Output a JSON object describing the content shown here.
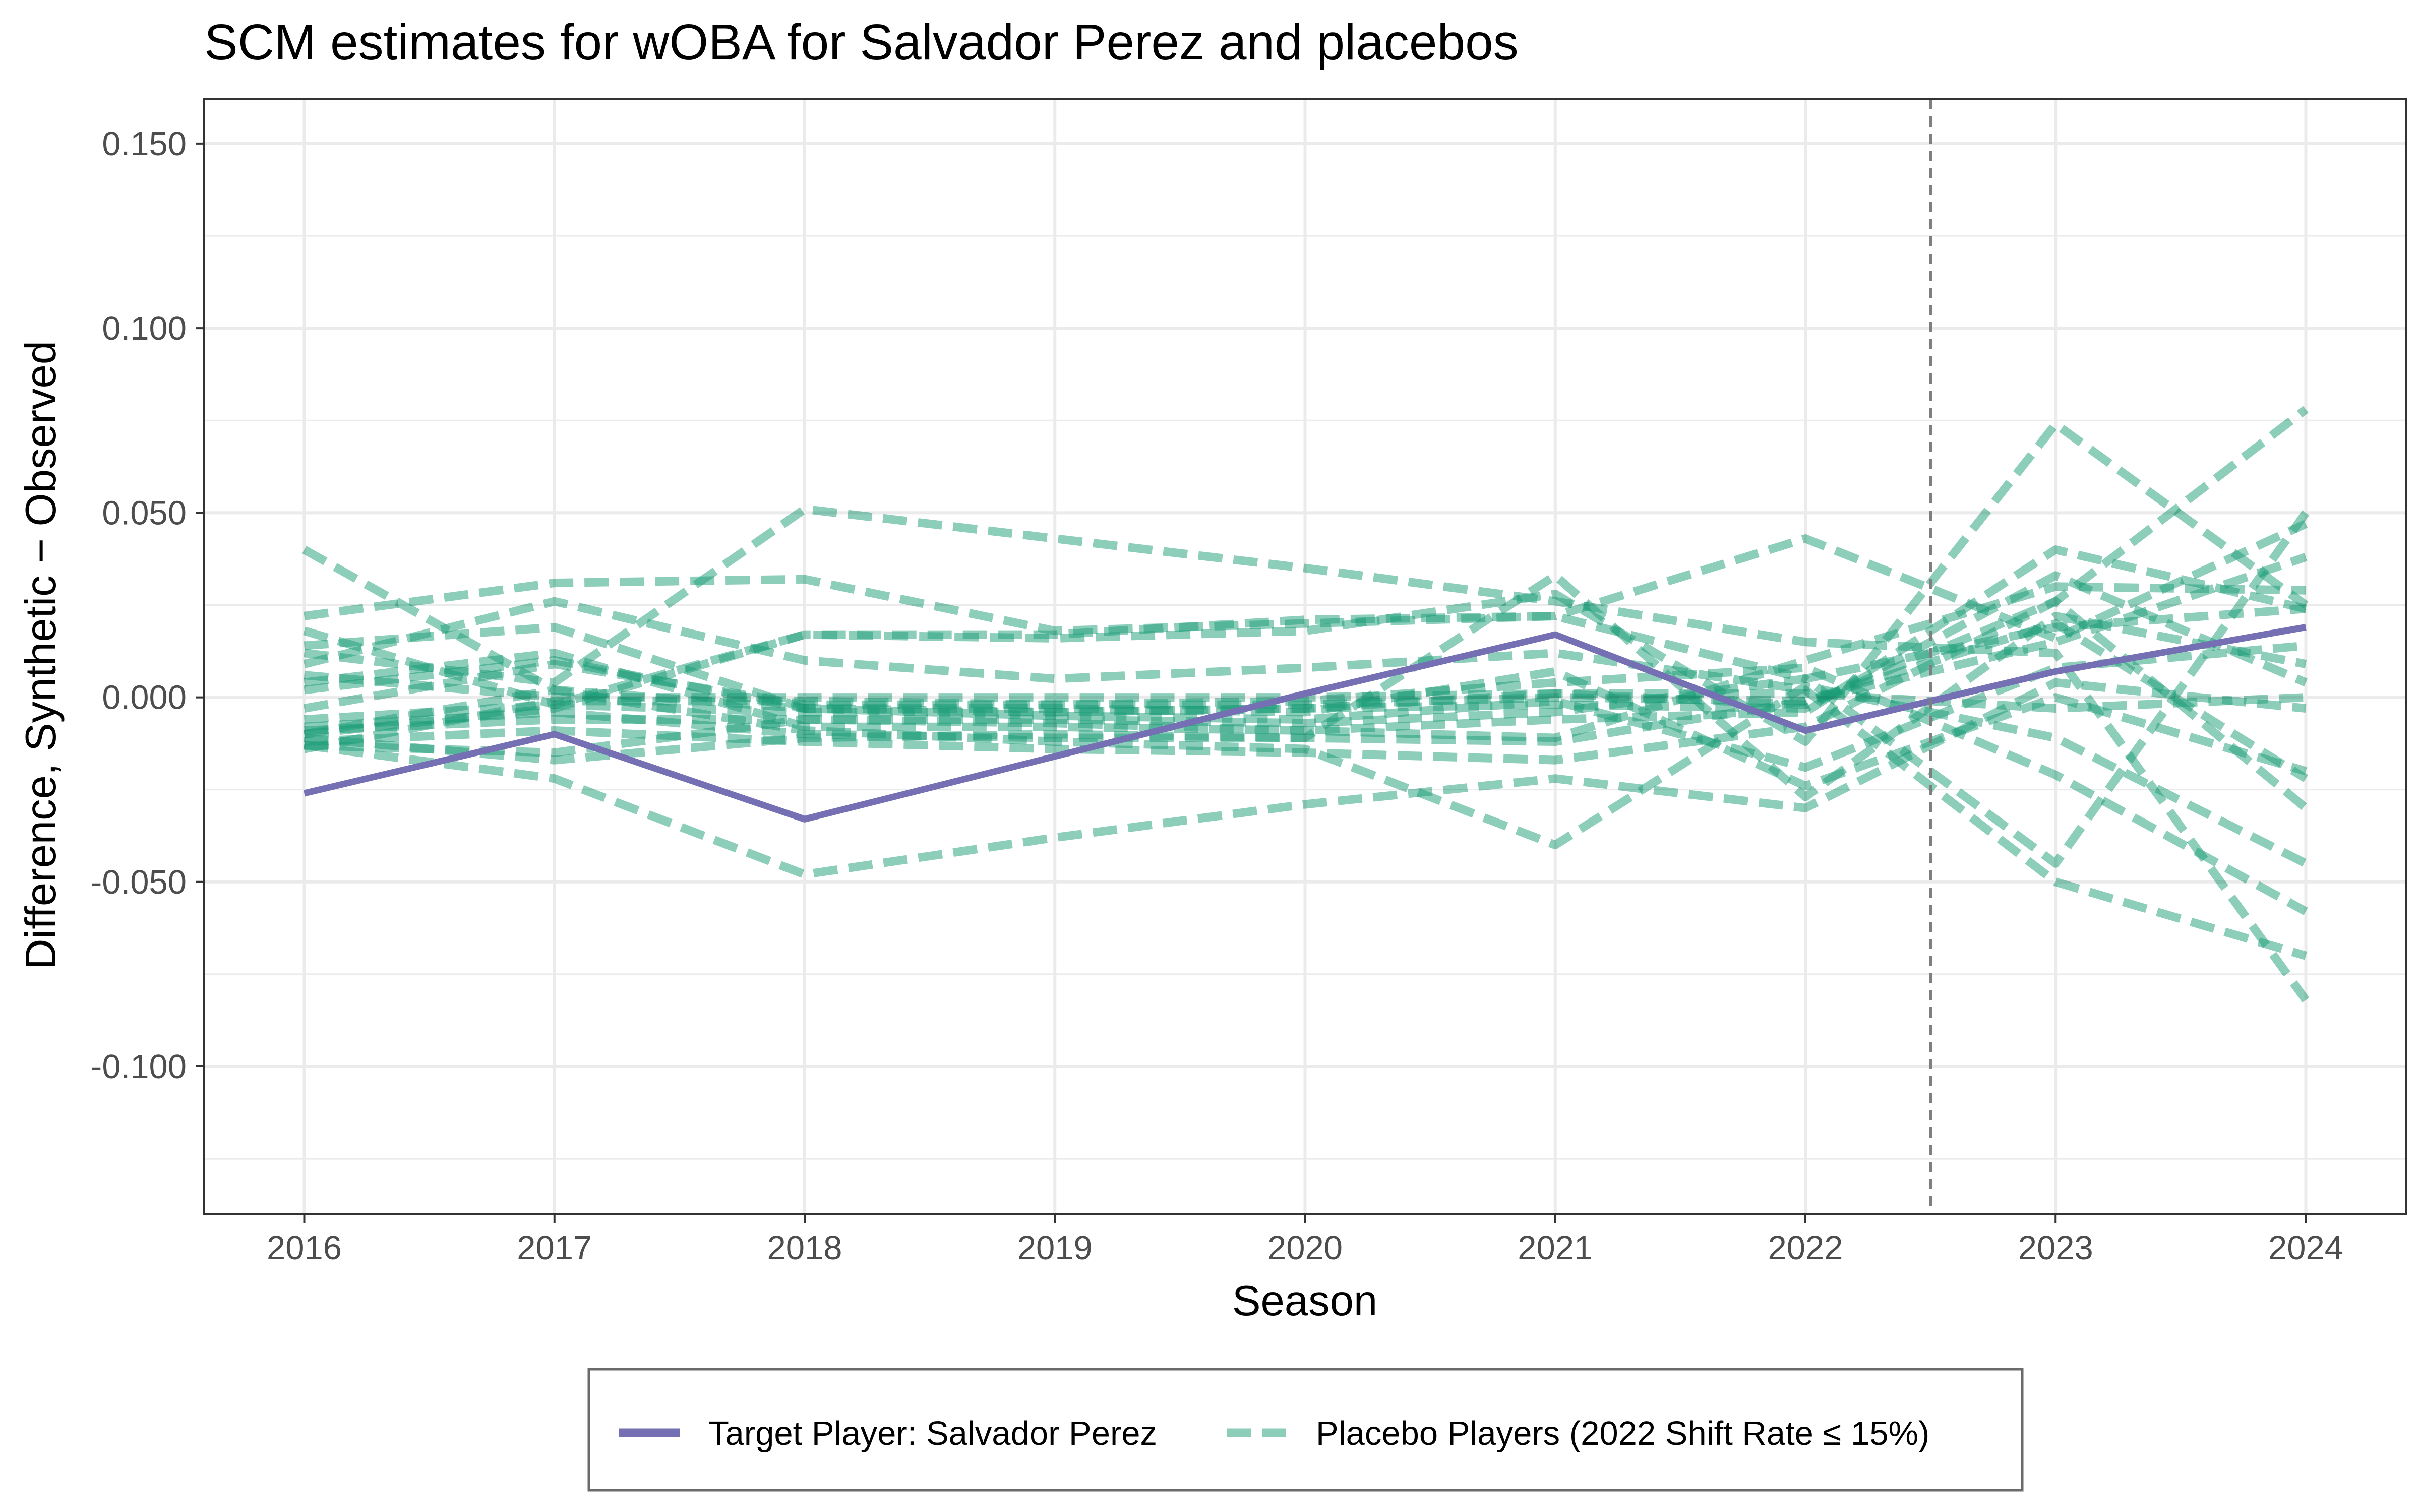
{
  "chart_data": {
    "type": "line",
    "title": "SCM estimates for wOBA for Salvador Perez and placebos",
    "xlabel": "Season",
    "ylabel": "Difference, Synthetic − Observed",
    "x": [
      2016,
      2017,
      2018,
      2019,
      2020,
      2021,
      2022,
      2023,
      2024
    ],
    "x_ticks": [
      "2016",
      "2017",
      "2018",
      "2019",
      "2020",
      "2021",
      "2022",
      "2023",
      "2024"
    ],
    "y_ticks": [
      "0.150",
      "0.100",
      "0.050",
      "0.000",
      "-0.050",
      "-0.100"
    ],
    "y_tick_values": [
      0.15,
      0.1,
      0.05,
      0.0,
      -0.05,
      -0.1
    ],
    "xlim": [
      2015.6,
      2024.4
    ],
    "ylim": [
      -0.14,
      0.162
    ],
    "grid": true,
    "legend_position": "bottom",
    "treatment_marker": {
      "x": 2022.5,
      "style": "dashed",
      "color": "#7f7f7f"
    },
    "target_series": {
      "name": "Target Player: Salvador Perez",
      "color": "#7570b3",
      "values": [
        -0.026,
        -0.01,
        -0.033,
        -0.016,
        0.001,
        0.017,
        -0.009,
        0.007,
        0.019
      ]
    },
    "placebo_legend_name": "Placebo Players (2022 Shift Rate ≤ 15%)",
    "placebo_color": "#1b9e77",
    "placebo_series": [
      [
        0.04,
        0.002,
        -0.003,
        -0.004,
        -0.003,
        0.001,
        -0.002,
        0.026,
        0.078
      ],
      [
        0.022,
        0.031,
        0.032,
        0.018,
        0.02,
        0.022,
        0.043,
        0.016,
        0.047
      ],
      [
        0.018,
        -0.002,
        0.017,
        0.016,
        0.018,
        0.028,
        -0.012,
        0.074,
        0.025
      ],
      [
        0.012,
        0.004,
        0.051,
        0.043,
        0.035,
        0.026,
        0.015,
        0.012,
        -0.082
      ],
      [
        0.009,
        0.026,
        0.01,
        0.005,
        0.008,
        0.012,
        0.002,
        -0.05,
        -0.07
      ],
      [
        0.004,
        0.012,
        -0.008,
        -0.008,
        -0.009,
        -0.006,
        -0.004,
        0.04,
        0.024
      ],
      [
        -0.003,
        0.009,
        -0.002,
        -0.002,
        -0.001,
        0.004,
        0.008,
        -0.021,
        -0.058
      ],
      [
        -0.006,
        -0.002,
        -0.004,
        -0.004,
        -0.003,
        -0.002,
        -0.003,
        0.033,
        0.004
      ],
      [
        -0.009,
        -0.006,
        -0.006,
        -0.006,
        -0.007,
        -0.004,
        0.005,
        -0.045,
        0.05
      ],
      [
        -0.011,
        -0.017,
        -0.011,
        -0.01,
        -0.011,
        -0.012,
        -0.001,
        0.02,
        -0.022
      ],
      [
        -0.013,
        -0.022,
        -0.048,
        -0.038,
        -0.029,
        -0.022,
        -0.03,
        0.004,
        -0.003
      ],
      [
        -0.014,
        -0.001,
        -0.001,
        -0.002,
        -0.002,
        0.0,
        -0.001,
        0.015,
        0.038
      ],
      [
        -0.01,
        0.002,
        -0.009,
        -0.012,
        -0.014,
        -0.04,
        0.003,
        -0.011,
        -0.045
      ],
      [
        0.014,
        0.019,
        -0.003,
        -0.005,
        -0.006,
        -0.001,
        -0.019,
        0.008,
        0.014
      ],
      [
        -0.012,
        -0.009,
        -0.012,
        -0.014,
        -0.015,
        -0.017,
        -0.008,
        0.026,
        -0.03
      ],
      [
        0.006,
        0.0,
        0.0,
        0.0,
        0.0,
        0.001,
        0.001,
        -0.003,
        0.0
      ],
      [
        -0.008,
        -0.004,
        -0.01,
        -0.011,
        -0.011,
        0.033,
        -0.027,
        0.022,
        0.009
      ],
      [
        -0.013,
        -0.015,
        -0.006,
        -0.007,
        -0.009,
        -0.011,
        0.01,
        0.03,
        0.029
      ],
      [
        0.002,
        0.01,
        -0.003,
        -0.003,
        -0.004,
        0.007,
        -0.024,
        0.0,
        -0.02
      ],
      [
        -0.01,
        -0.003,
        0.017,
        0.017,
        0.021,
        0.022,
        0.005,
        0.019,
        0.024
      ]
    ]
  }
}
